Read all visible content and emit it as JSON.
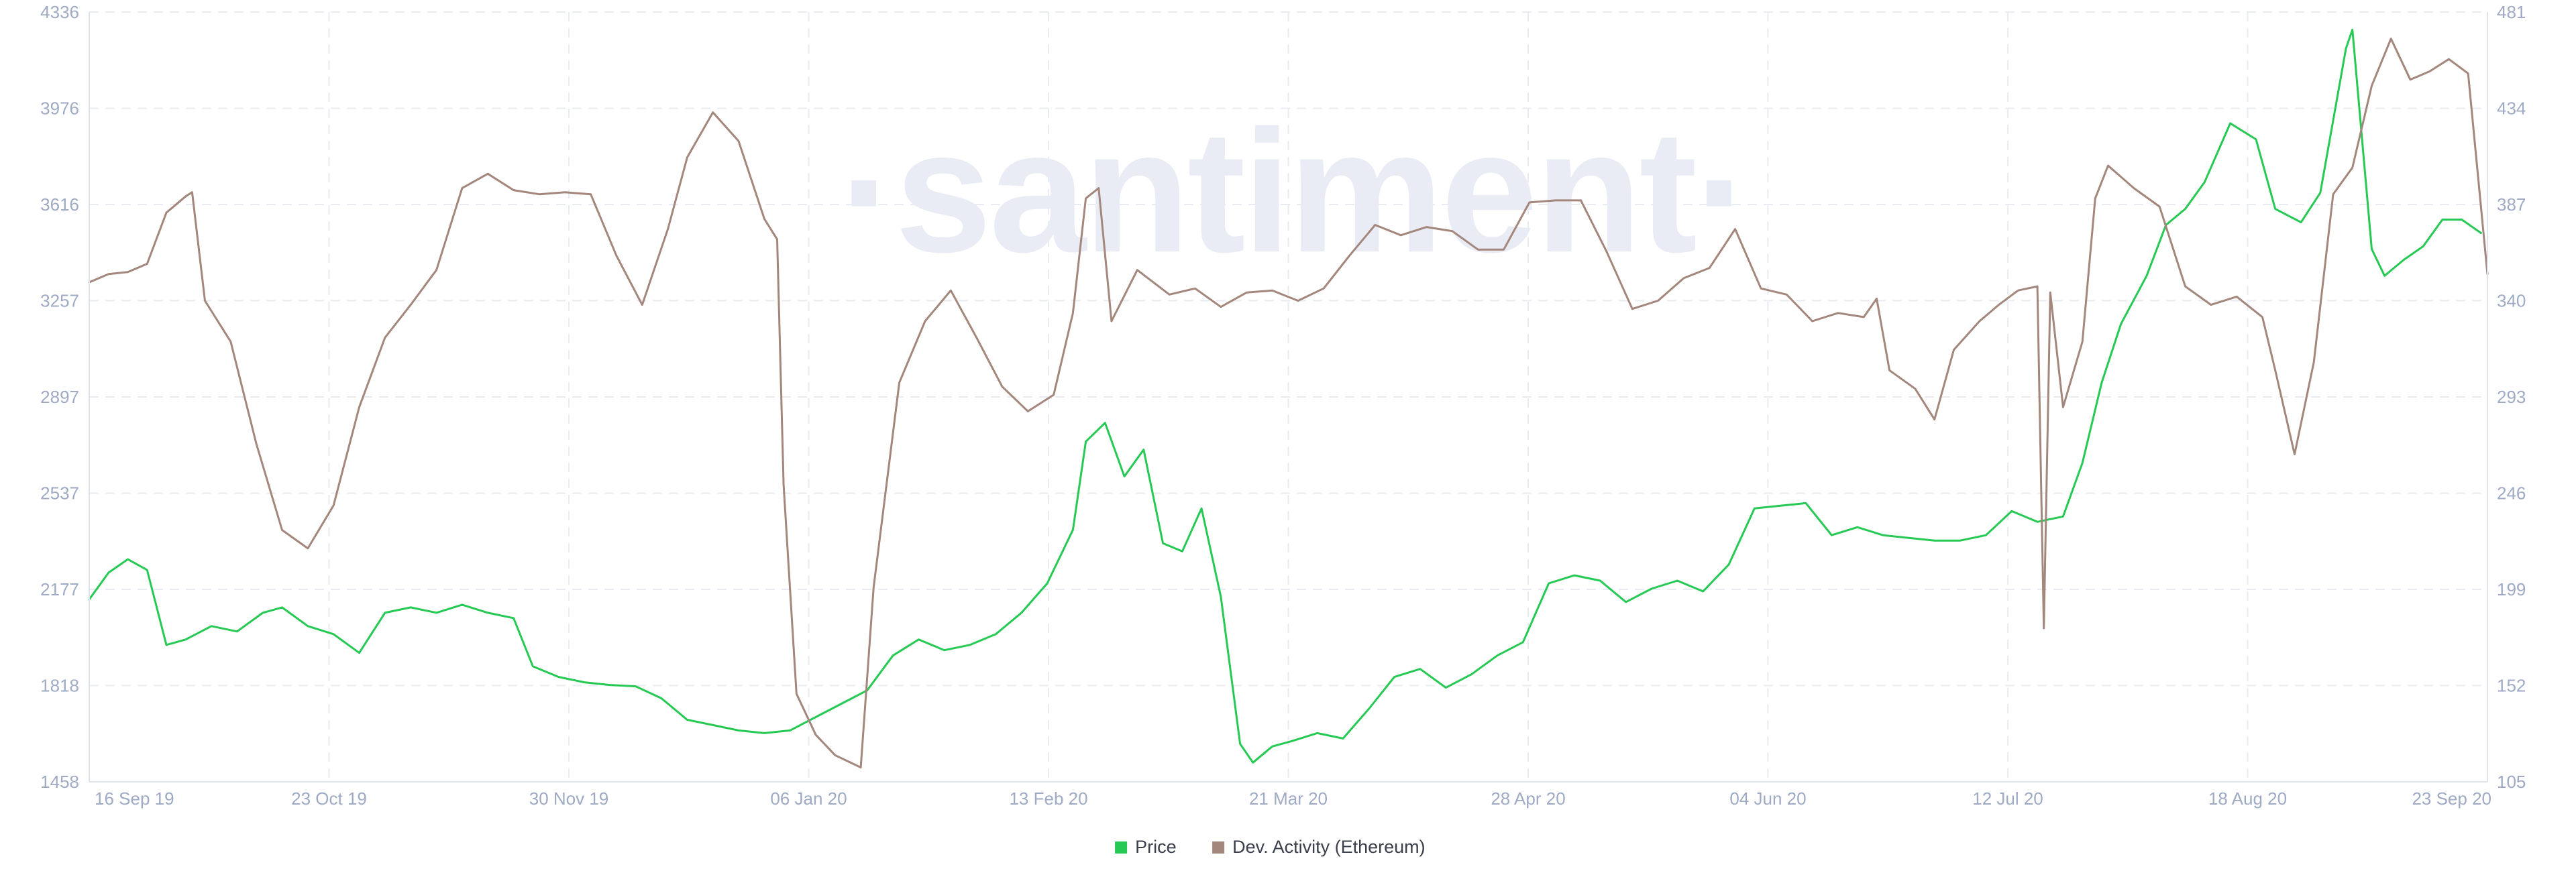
{
  "watermark": "·santiment·",
  "colors": {
    "price": "#26c953",
    "dev_activity": "#a3877c",
    "grid": "#e8ebf2",
    "axis": "#dfe3ec",
    "tick_text": "#9faac4",
    "watermark": "#e9ecf5"
  },
  "legend": [
    {
      "label": "Price",
      "color": "#26c953"
    },
    {
      "label": "Dev. Activity (Ethereum)",
      "color": "#a3877c"
    }
  ],
  "chart_data": {
    "type": "line",
    "x_axis": {
      "type": "date",
      "range": [
        "2019-09-16",
        "2020-09-23"
      ],
      "tick_labels": [
        "16 Sep 19",
        "23 Oct 19",
        "30 Nov 19",
        "06 Jan 20",
        "13 Feb 20",
        "21 Mar 20",
        "28 Apr 20",
        "04 Jun 20",
        "12 Jul 20",
        "18 Aug 20",
        "23 Sep 20"
      ]
    },
    "y_left": {
      "series": "Price",
      "range": [
        1458,
        4336
      ],
      "tick_labels": [
        "1458",
        "1818",
        "2177",
        "2537",
        "2897",
        "3257",
        "3616",
        "3976",
        "4336"
      ]
    },
    "y_right": {
      "series": "Dev. Activity (Ethereum)",
      "range": [
        105,
        481
      ],
      "tick_labels": [
        "105",
        "152",
        "199",
        "246",
        "293",
        "340",
        "387",
        "434",
        "481"
      ]
    },
    "grid": true,
    "legend_position": "bottom-center",
    "series": [
      {
        "name": "Price",
        "axis": "left",
        "color": "#26c953",
        "points": [
          [
            "2019-09-16",
            2140
          ],
          [
            "2019-09-19",
            2240
          ],
          [
            "2019-09-22",
            2290
          ],
          [
            "2019-09-25",
            2250
          ],
          [
            "2019-09-28",
            1970
          ],
          [
            "2019-10-01",
            1990
          ],
          [
            "2019-10-05",
            2040
          ],
          [
            "2019-10-09",
            2020
          ],
          [
            "2019-10-13",
            2090
          ],
          [
            "2019-10-16",
            2110
          ],
          [
            "2019-10-20",
            2040
          ],
          [
            "2019-10-24",
            2010
          ],
          [
            "2019-10-28",
            1940
          ],
          [
            "2019-11-01",
            2090
          ],
          [
            "2019-11-05",
            2110
          ],
          [
            "2019-11-09",
            2090
          ],
          [
            "2019-11-13",
            2120
          ],
          [
            "2019-11-17",
            2090
          ],
          [
            "2019-11-21",
            2070
          ],
          [
            "2019-11-24",
            1890
          ],
          [
            "2019-11-28",
            1850
          ],
          [
            "2019-12-02",
            1830
          ],
          [
            "2019-12-06",
            1820
          ],
          [
            "2019-12-10",
            1815
          ],
          [
            "2019-12-14",
            1770
          ],
          [
            "2019-12-18",
            1690
          ],
          [
            "2019-12-22",
            1670
          ],
          [
            "2019-12-26",
            1650
          ],
          [
            "2019-12-30",
            1640
          ],
          [
            "2020-01-03",
            1650
          ],
          [
            "2020-01-07",
            1700
          ],
          [
            "2020-01-11",
            1750
          ],
          [
            "2020-01-15",
            1800
          ],
          [
            "2020-01-19",
            1930
          ],
          [
            "2020-01-23",
            1990
          ],
          [
            "2020-01-27",
            1950
          ],
          [
            "2020-01-31",
            1970
          ],
          [
            "2020-02-04",
            2010
          ],
          [
            "2020-02-08",
            2090
          ],
          [
            "2020-02-12",
            2200
          ],
          [
            "2020-02-16",
            2400
          ],
          [
            "2020-02-18",
            2730
          ],
          [
            "2020-02-21",
            2800
          ],
          [
            "2020-02-24",
            2600
          ],
          [
            "2020-02-27",
            2700
          ],
          [
            "2020-03-01",
            2350
          ],
          [
            "2020-03-04",
            2320
          ],
          [
            "2020-03-07",
            2480
          ],
          [
            "2020-03-10",
            2150
          ],
          [
            "2020-03-13",
            1600
          ],
          [
            "2020-03-15",
            1530
          ],
          [
            "2020-03-18",
            1590
          ],
          [
            "2020-03-21",
            1610
          ],
          [
            "2020-03-25",
            1640
          ],
          [
            "2020-03-29",
            1620
          ],
          [
            "2020-04-02",
            1730
          ],
          [
            "2020-04-06",
            1850
          ],
          [
            "2020-04-10",
            1880
          ],
          [
            "2020-04-14",
            1810
          ],
          [
            "2020-04-18",
            1860
          ],
          [
            "2020-04-22",
            1930
          ],
          [
            "2020-04-26",
            1980
          ],
          [
            "2020-04-30",
            2200
          ],
          [
            "2020-05-04",
            2230
          ],
          [
            "2020-05-08",
            2210
          ],
          [
            "2020-05-12",
            2130
          ],
          [
            "2020-05-16",
            2180
          ],
          [
            "2020-05-20",
            2210
          ],
          [
            "2020-05-24",
            2170
          ],
          [
            "2020-05-28",
            2270
          ],
          [
            "2020-06-01",
            2480
          ],
          [
            "2020-06-05",
            2490
          ],
          [
            "2020-06-09",
            2500
          ],
          [
            "2020-06-13",
            2380
          ],
          [
            "2020-06-17",
            2410
          ],
          [
            "2020-06-21",
            2380
          ],
          [
            "2020-06-25",
            2370
          ],
          [
            "2020-06-29",
            2360
          ],
          [
            "2020-07-03",
            2360
          ],
          [
            "2020-07-07",
            2380
          ],
          [
            "2020-07-11",
            2470
          ],
          [
            "2020-07-15",
            2430
          ],
          [
            "2020-07-19",
            2450
          ],
          [
            "2020-07-22",
            2650
          ],
          [
            "2020-07-25",
            2950
          ],
          [
            "2020-07-28",
            3170
          ],
          [
            "2020-08-01",
            3350
          ],
          [
            "2020-08-04",
            3540
          ],
          [
            "2020-08-07",
            3600
          ],
          [
            "2020-08-10",
            3700
          ],
          [
            "2020-08-14",
            3920
          ],
          [
            "2020-08-18",
            3860
          ],
          [
            "2020-08-21",
            3600
          ],
          [
            "2020-08-25",
            3550
          ],
          [
            "2020-08-28",
            3660
          ],
          [
            "2020-09-01",
            4200
          ],
          [
            "2020-09-02",
            4270
          ],
          [
            "2020-09-05",
            3450
          ],
          [
            "2020-09-07",
            3350
          ],
          [
            "2020-09-10",
            3410
          ],
          [
            "2020-09-13",
            3460
          ],
          [
            "2020-09-16",
            3560
          ],
          [
            "2020-09-19",
            3560
          ],
          [
            "2020-09-22",
            3510
          ]
        ]
      },
      {
        "name": "Dev. Activity (Ethereum)",
        "axis": "right",
        "color": "#a3877c",
        "points": [
          [
            "2019-09-16",
            349
          ],
          [
            "2019-09-19",
            353
          ],
          [
            "2019-09-22",
            354
          ],
          [
            "2019-09-25",
            358
          ],
          [
            "2019-09-28",
            383
          ],
          [
            "2019-10-01",
            391
          ],
          [
            "2019-10-02",
            393
          ],
          [
            "2019-10-04",
            340
          ],
          [
            "2019-10-08",
            320
          ],
          [
            "2019-10-12",
            270
          ],
          [
            "2019-10-16",
            228
          ],
          [
            "2019-10-20",
            219
          ],
          [
            "2019-10-24",
            240
          ],
          [
            "2019-10-28",
            288
          ],
          [
            "2019-11-01",
            322
          ],
          [
            "2019-11-05",
            338
          ],
          [
            "2019-11-09",
            355
          ],
          [
            "2019-11-13",
            395
          ],
          [
            "2019-11-17",
            402
          ],
          [
            "2019-11-21",
            394
          ],
          [
            "2019-11-25",
            392
          ],
          [
            "2019-11-29",
            393
          ],
          [
            "2019-12-03",
            392
          ],
          [
            "2019-12-07",
            362
          ],
          [
            "2019-12-11",
            338
          ],
          [
            "2019-12-15",
            375
          ],
          [
            "2019-12-18",
            410
          ],
          [
            "2019-12-22",
            432
          ],
          [
            "2019-12-26",
            418
          ],
          [
            "2019-12-30",
            380
          ],
          [
            "2020-01-01",
            370
          ],
          [
            "2020-01-02",
            250
          ],
          [
            "2020-01-04",
            148
          ],
          [
            "2020-01-07",
            128
          ],
          [
            "2020-01-10",
            118
          ],
          [
            "2020-01-14",
            112
          ],
          [
            "2020-01-16",
            200
          ],
          [
            "2020-01-20",
            300
          ],
          [
            "2020-01-24",
            330
          ],
          [
            "2020-01-28",
            345
          ],
          [
            "2020-02-01",
            322
          ],
          [
            "2020-02-05",
            298
          ],
          [
            "2020-02-09",
            286
          ],
          [
            "2020-02-13",
            294
          ],
          [
            "2020-02-16",
            334
          ],
          [
            "2020-02-18",
            390
          ],
          [
            "2020-02-20",
            395
          ],
          [
            "2020-02-22",
            330
          ],
          [
            "2020-02-26",
            355
          ],
          [
            "2020-03-02",
            343
          ],
          [
            "2020-03-06",
            346
          ],
          [
            "2020-03-10",
            337
          ],
          [
            "2020-03-14",
            344
          ],
          [
            "2020-03-18",
            345
          ],
          [
            "2020-03-22",
            340
          ],
          [
            "2020-03-26",
            346
          ],
          [
            "2020-03-30",
            362
          ],
          [
            "2020-04-03",
            377
          ],
          [
            "2020-04-07",
            372
          ],
          [
            "2020-04-11",
            376
          ],
          [
            "2020-04-15",
            374
          ],
          [
            "2020-04-19",
            365
          ],
          [
            "2020-04-23",
            365
          ],
          [
            "2020-04-27",
            388
          ],
          [
            "2020-05-01",
            389
          ],
          [
            "2020-05-05",
            389
          ],
          [
            "2020-05-09",
            364
          ],
          [
            "2020-05-13",
            336
          ],
          [
            "2020-05-17",
            340
          ],
          [
            "2020-05-21",
            351
          ],
          [
            "2020-05-25",
            356
          ],
          [
            "2020-05-29",
            375
          ],
          [
            "2020-06-02",
            346
          ],
          [
            "2020-06-06",
            343
          ],
          [
            "2020-06-10",
            330
          ],
          [
            "2020-06-14",
            334
          ],
          [
            "2020-06-18",
            332
          ],
          [
            "2020-06-20",
            341
          ],
          [
            "2020-06-22",
            306
          ],
          [
            "2020-06-26",
            297
          ],
          [
            "2020-06-29",
            282
          ],
          [
            "2020-07-02",
            316
          ],
          [
            "2020-07-06",
            330
          ],
          [
            "2020-07-09",
            338
          ],
          [
            "2020-07-12",
            345
          ],
          [
            "2020-07-15",
            347
          ],
          [
            "2020-07-16",
            180
          ],
          [
            "2020-07-17",
            344
          ],
          [
            "2020-07-19",
            288
          ],
          [
            "2020-07-22",
            320
          ],
          [
            "2020-07-24",
            390
          ],
          [
            "2020-07-26",
            406
          ],
          [
            "2020-07-30",
            395
          ],
          [
            "2020-08-03",
            386
          ],
          [
            "2020-08-07",
            347
          ],
          [
            "2020-08-11",
            338
          ],
          [
            "2020-08-15",
            342
          ],
          [
            "2020-08-19",
            332
          ],
          [
            "2020-08-21",
            306
          ],
          [
            "2020-08-24",
            265
          ],
          [
            "2020-08-27",
            310
          ],
          [
            "2020-08-30",
            392
          ],
          [
            "2020-09-02",
            405
          ],
          [
            "2020-09-05",
            445
          ],
          [
            "2020-09-08",
            468
          ],
          [
            "2020-09-11",
            448
          ],
          [
            "2020-09-14",
            452
          ],
          [
            "2020-09-17",
            458
          ],
          [
            "2020-09-20",
            451
          ],
          [
            "2020-09-23",
            353
          ]
        ]
      }
    ]
  }
}
